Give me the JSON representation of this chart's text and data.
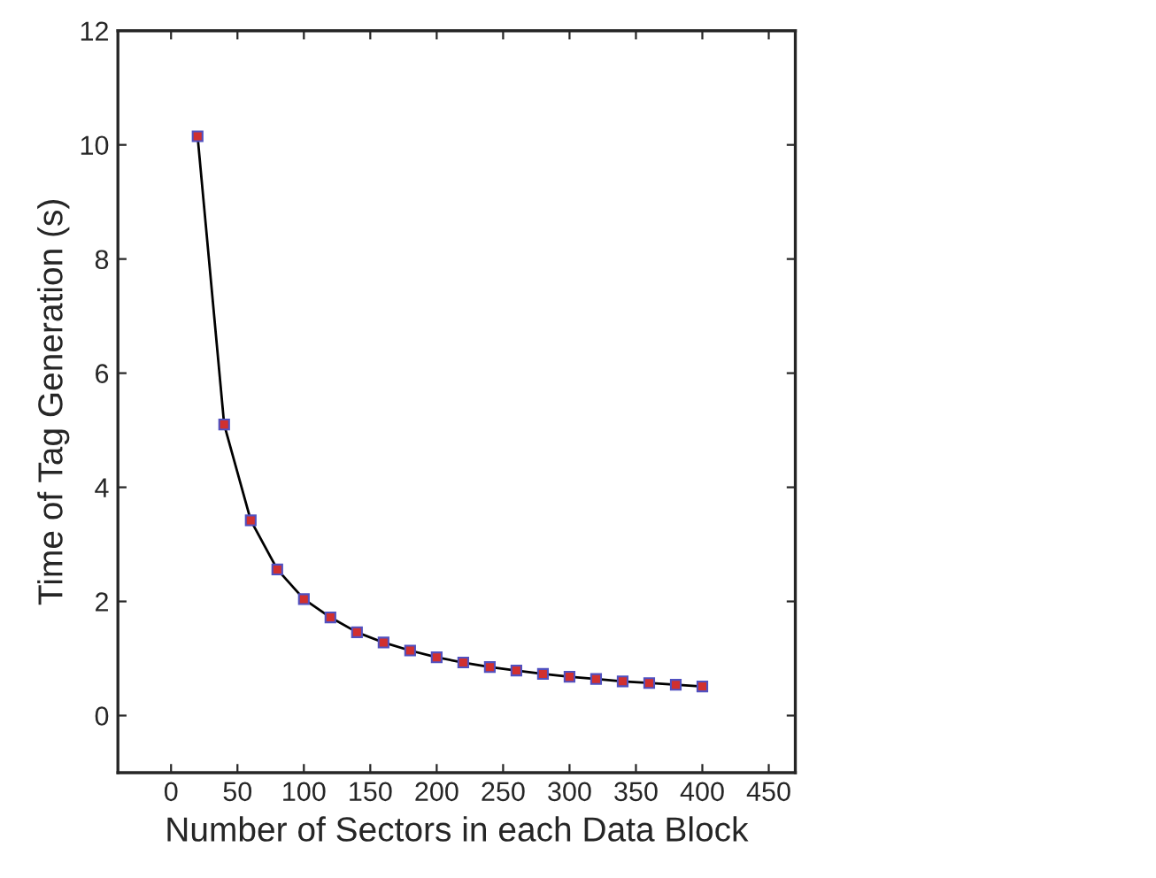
{
  "chart_data": {
    "type": "line",
    "xlabel": "Number of Sectors in each Data Block",
    "ylabel": "Time of Tag Generation (s)",
    "x": [
      20,
      40,
      60,
      80,
      100,
      120,
      140,
      160,
      180,
      200,
      220,
      240,
      260,
      280,
      300,
      320,
      340,
      360,
      380,
      400
    ],
    "series": [
      {
        "color": "#000000",
        "values": [
          10.15,
          5.1,
          3.42,
          2.56,
          2.04,
          1.72,
          1.46,
          1.28,
          1.14,
          1.02,
          0.93,
          0.85,
          0.79,
          0.73,
          0.68,
          0.64,
          0.6,
          0.57,
          0.54,
          0.51
        ]
      }
    ],
    "marker": "square",
    "line_style": "solid",
    "grid": false,
    "legend": false,
    "xlim": [
      -40,
      470
    ],
    "xticks": [
      0,
      50,
      100,
      150,
      200,
      250,
      300,
      350,
      400,
      450
    ],
    "ylim": [
      -1,
      12
    ],
    "yticks": [
      0,
      2,
      4,
      6,
      8,
      10,
      12
    ]
  }
}
